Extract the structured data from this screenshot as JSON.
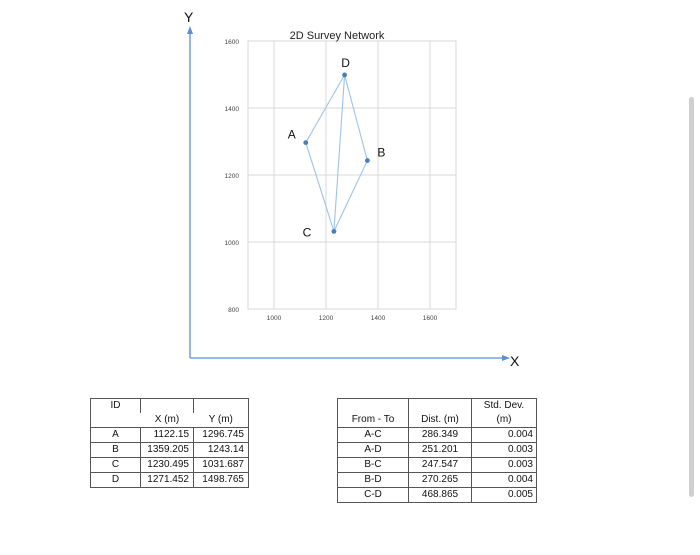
{
  "chart_data": {
    "type": "scatter",
    "title": "2D Survey Network",
    "x_axis_label": "X",
    "y_axis_label": "Y",
    "xlim": [
      900,
      1700
    ],
    "ylim": [
      800,
      1600
    ],
    "x_ticks": [
      1000,
      1200,
      1400,
      1600
    ],
    "y_ticks": [
      800,
      1000,
      1200,
      1400,
      1600
    ],
    "grid": true,
    "points": [
      {
        "label": "A",
        "x": 1122.15,
        "y": 1296.745
      },
      {
        "label": "B",
        "x": 1359.205,
        "y": 1243.14
      },
      {
        "label": "C",
        "x": 1230.495,
        "y": 1031.687
      },
      {
        "label": "D",
        "x": 1271.452,
        "y": 1498.765
      }
    ],
    "lines": [
      [
        "A",
        "C"
      ],
      [
        "A",
        "D"
      ],
      [
        "B",
        "C"
      ],
      [
        "B",
        "D"
      ],
      [
        "C",
        "D"
      ]
    ],
    "point_color": "#4a7ebb",
    "line_color": "#9dc3e6"
  },
  "coordinates_table": {
    "headers": [
      "ID",
      "X (m)",
      "Y (m)"
    ],
    "rows": [
      [
        "A",
        "1122.15",
        "1296.745"
      ],
      [
        "B",
        "1359.205",
        "1243.14"
      ],
      [
        "C",
        "1230.495",
        "1031.687"
      ],
      [
        "D",
        "1271.452",
        "1498.765"
      ]
    ]
  },
  "observations_table": {
    "headers": [
      "From - To",
      "Dist. (m)",
      "Std. Dev."
    ],
    "std_unit": "(m)",
    "rows": [
      [
        "A-C",
        "286.349",
        "0.004"
      ],
      [
        "A-D",
        "251.201",
        "0.003"
      ],
      [
        "B-C",
        "247.547",
        "0.003"
      ],
      [
        "B-D",
        "270.265",
        "0.004"
      ],
      [
        "C-D",
        "468.865",
        "0.005"
      ]
    ]
  }
}
